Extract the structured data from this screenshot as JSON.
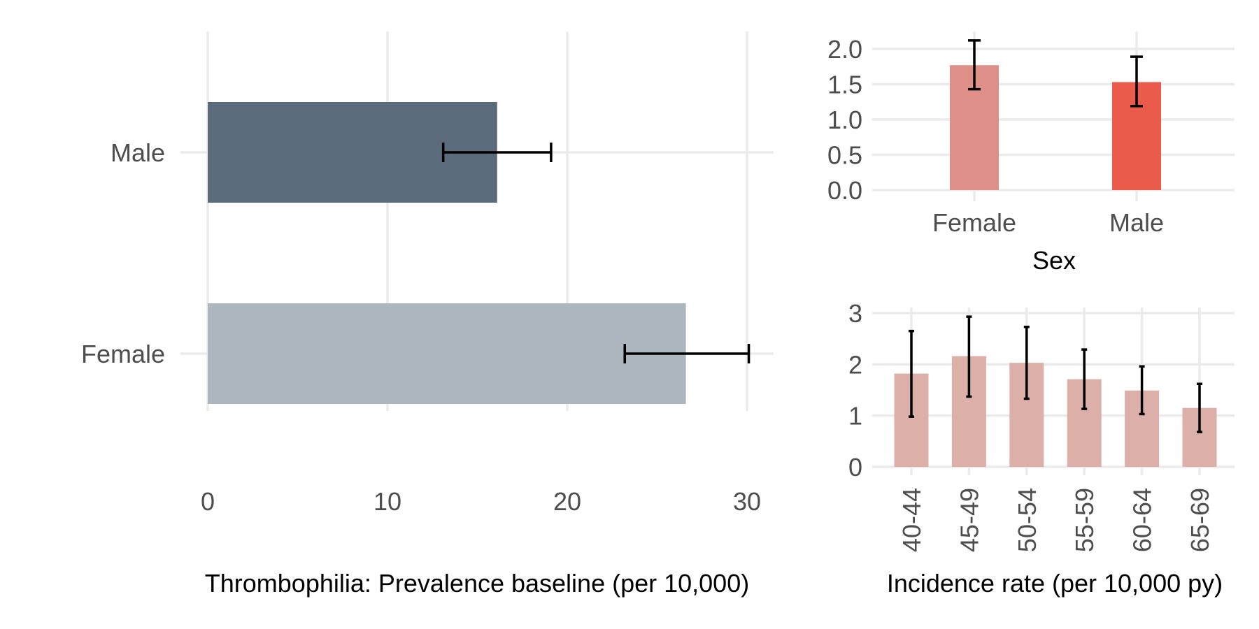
{
  "chart_data": [
    {
      "id": "prevalence",
      "type": "bar",
      "orientation": "horizontal",
      "categories": [
        "Male",
        "Female"
      ],
      "values": [
        16.1,
        26.6
      ],
      "error_low": [
        13.1,
        23.2
      ],
      "error_high": [
        19.1,
        30.1
      ],
      "colors": [
        "#5b6b7b",
        "#adb5be"
      ],
      "xlim": [
        -1.5,
        31.7
      ],
      "xticks": [
        0,
        10,
        20,
        30
      ],
      "xlabel": "Thrombophilia: Prevalence baseline (per 10,000)",
      "grid": true
    },
    {
      "id": "incidence-sex",
      "type": "bar",
      "categories": [
        "Female",
        "Male"
      ],
      "values": [
        1.77,
        1.53
      ],
      "error_low": [
        1.43,
        1.19
      ],
      "error_high": [
        2.12,
        1.89
      ],
      "colors": [
        "#de8f87",
        "#eb5b4b"
      ],
      "ylim": [
        -0.11,
        2.3
      ],
      "yticks": [
        "0.0",
        "0.5",
        "1.0",
        "1.5",
        "2.0"
      ],
      "xlabel": "Sex",
      "grid": true
    },
    {
      "id": "incidence-age",
      "type": "bar",
      "categories": [
        "40-44",
        "45-49",
        "50-54",
        "55-59",
        "60-64",
        "65-69"
      ],
      "values": [
        1.82,
        2.16,
        2.03,
        1.71,
        1.49,
        1.15
      ],
      "error_low": [
        0.98,
        1.37,
        1.33,
        1.13,
        1.03,
        0.68
      ],
      "error_high": [
        2.65,
        2.93,
        2.73,
        2.29,
        1.96,
        1.62
      ],
      "color": "#dcafa9",
      "ylim": [
        -0.17,
        3.15
      ],
      "yticks": [
        "0",
        "1",
        "2",
        "3"
      ],
      "xlabel": "Incidence rate (per 10,000 py)",
      "grid": true
    }
  ]
}
